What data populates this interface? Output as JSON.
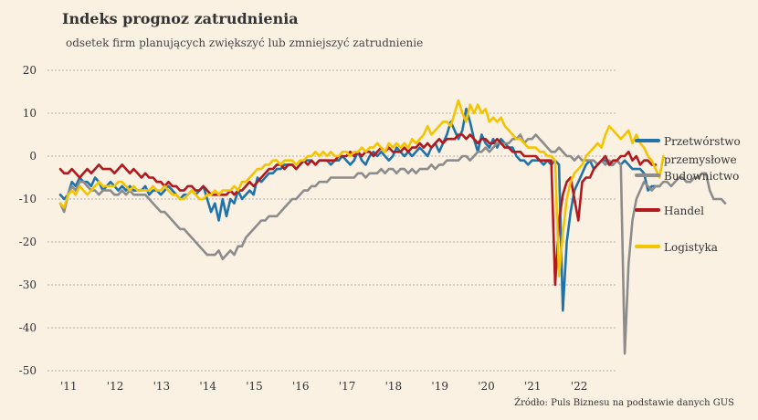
{
  "title": "Indeks prognoz zatrudnienia",
  "subtitle": "odsetek firm planujących zwiększyć lub zmniejszyć zatrudnienie",
  "source": "Źródło: Puls Biznesu na podstawie danych GUS",
  "legend": [
    {
      "label": "Przetwórstwo przemysłowe",
      "color": "#1f73a8"
    },
    {
      "label": "Budownictwo",
      "color": "#8c8c8c"
    },
    {
      "label": "Handel",
      "color": "#b0191e"
    },
    {
      "label": "Logistyka",
      "color": "#f5c400"
    }
  ],
  "chart_data": {
    "type": "line",
    "ylim": [
      -50,
      20
    ],
    "yticks": [
      "20",
      "10",
      "0",
      "-10",
      "-20",
      "-30",
      "-40",
      "-50"
    ],
    "xticks": [
      "'11",
      "'12",
      "'13",
      "'14",
      "'15",
      "'16",
      "'17",
      "'18",
      "'19",
      "'20",
      "'21",
      "'22"
    ],
    "x_start": "2011-01",
    "grid": true,
    "legend_position": "right",
    "series": [
      {
        "name": "Przetwórstwo przemysłowe",
        "color": "#1f73a8",
        "values": [
          -9,
          -10,
          -9,
          -6,
          -7,
          -5,
          -6,
          -6,
          -7,
          -5,
          -6,
          -8,
          -7,
          -6,
          -7,
          -8,
          -7,
          -8,
          -7,
          -8,
          -8,
          -8,
          -7,
          -9,
          -8,
          -8,
          -9,
          -8,
          -7,
          -8,
          -9,
          -10,
          -9,
          -9,
          -8,
          -9,
          -8,
          -7,
          -10,
          -13,
          -11,
          -15,
          -10,
          -14,
          -10,
          -11,
          -8,
          -10,
          -9,
          -8,
          -9,
          -5,
          -6,
          -5,
          -4,
          -4,
          -3,
          -3,
          -2,
          -2,
          -2,
          -3,
          -2,
          -1,
          -1,
          -1,
          -2,
          -1,
          -1,
          -1,
          -2,
          -1,
          -1,
          0,
          -1,
          -2,
          -1,
          1,
          -1,
          -2,
          0,
          1,
          0,
          1,
          0,
          -1,
          0,
          2,
          1,
          0,
          1,
          0,
          1,
          2,
          1,
          0,
          2,
          3,
          1,
          3,
          5,
          8,
          6,
          4,
          6,
          11,
          8,
          4,
          1,
          5,
          3,
          2,
          4,
          2,
          4,
          3,
          2,
          2,
          0,
          -1,
          -1,
          -2,
          -1,
          -1,
          -1,
          -2,
          -1,
          -2,
          -1,
          -2,
          -36,
          -20,
          -13,
          -8,
          -6,
          -4,
          -2,
          -1,
          -3,
          -2,
          -1,
          -1,
          -2,
          -2,
          -1,
          -2,
          -1,
          -2,
          -3,
          -3,
          -3,
          -4,
          -8,
          -7,
          -7,
          -7
        ]
      },
      {
        "name": "Budownictwo",
        "color": "#8c8c8c",
        "values": [
          -11,
          -13,
          -9,
          -7,
          -8,
          -6,
          -6,
          -7,
          -8,
          -8,
          -9,
          -8,
          -8,
          -8,
          -9,
          -9,
          -8,
          -9,
          -8,
          -9,
          -9,
          -9,
          -9,
          -10,
          -11,
          -12,
          -13,
          -13,
          -14,
          -15,
          -16,
          -17,
          -17,
          -18,
          -19,
          -20,
          -21,
          -22,
          -23,
          -23,
          -23,
          -22,
          -24,
          -23,
          -22,
          -23,
          -21,
          -21,
          -19,
          -18,
          -17,
          -16,
          -15,
          -15,
          -14,
          -14,
          -14,
          -13,
          -12,
          -11,
          -10,
          -10,
          -9,
          -8,
          -8,
          -7,
          -7,
          -6,
          -6,
          -6,
          -5,
          -5,
          -5,
          -5,
          -5,
          -5,
          -5,
          -4,
          -4,
          -5,
          -4,
          -4,
          -4,
          -3,
          -4,
          -3,
          -3,
          -4,
          -3,
          -3,
          -4,
          -3,
          -4,
          -3,
          -3,
          -3,
          -2,
          -3,
          -2,
          -2,
          -1,
          -1,
          -1,
          -1,
          0,
          0,
          -1,
          0,
          1,
          1,
          2,
          1,
          2,
          3,
          3,
          3,
          3,
          4,
          4,
          5,
          3,
          4,
          4,
          5,
          4,
          3,
          2,
          1,
          1,
          2,
          1,
          0,
          0,
          -1,
          0,
          -1,
          -1,
          -1,
          -1,
          -2,
          -1,
          -2,
          -1,
          -2,
          -1,
          -2,
          -46,
          -25,
          -15,
          -10,
          -8,
          -6,
          -7,
          -8,
          -7,
          -7,
          -6,
          -6,
          -7,
          -6,
          -5,
          -5,
          -6,
          -6,
          -5,
          -5,
          -4,
          -4,
          -8,
          -10,
          -10,
          -10,
          -11
        ]
      },
      {
        "name": "Handel",
        "color": "#b0191e",
        "values": [
          -3,
          -4,
          -4,
          -3,
          -4,
          -5,
          -4,
          -3,
          -4,
          -3,
          -2,
          -3,
          -3,
          -3,
          -4,
          -3,
          -2,
          -3,
          -4,
          -3,
          -4,
          -5,
          -4,
          -5,
          -5,
          -6,
          -6,
          -7,
          -6,
          -7,
          -7,
          -8,
          -8,
          -7,
          -7,
          -8,
          -8,
          -7,
          -8,
          -9,
          -9,
          -9,
          -9,
          -9,
          -8,
          -9,
          -8,
          -8,
          -7,
          -6,
          -7,
          -6,
          -5,
          -4,
          -3,
          -3,
          -2,
          -2,
          -3,
          -2,
          -2,
          -3,
          -2,
          -1,
          -2,
          -1,
          -2,
          -1,
          -1,
          -1,
          -1,
          -1,
          0,
          0,
          0,
          1,
          0,
          1,
          0,
          1,
          1,
          0,
          1,
          2,
          1,
          2,
          1,
          1,
          1,
          2,
          1,
          2,
          2,
          3,
          2,
          3,
          2,
          3,
          4,
          3,
          4,
          4,
          4,
          5,
          5,
          4,
          5,
          4,
          3,
          4,
          4,
          3,
          3,
          4,
          3,
          2,
          2,
          1,
          1,
          1,
          0,
          0,
          0,
          0,
          -1,
          -1,
          -1,
          -1,
          -30,
          -15,
          -9,
          -6,
          -5,
          -10,
          -15,
          -6,
          -5,
          -5,
          -3,
          -2,
          -1,
          0,
          -2,
          -1,
          -1,
          0,
          0,
          1,
          -1,
          0,
          -2,
          -1,
          -1,
          -2,
          -2
        ]
      },
      {
        "name": "Logistyka",
        "color": "#f5c400",
        "values": [
          -11,
          -12,
          -9,
          -8,
          -9,
          -7,
          -8,
          -9,
          -8,
          -7,
          -6,
          -7,
          -7,
          -7,
          -7,
          -6,
          -6,
          -7,
          -8,
          -7,
          -8,
          -8,
          -8,
          -8,
          -7,
          -8,
          -8,
          -7,
          -8,
          -9,
          -9,
          -10,
          -10,
          -9,
          -8,
          -9,
          -10,
          -10,
          -9,
          -9,
          -8,
          -9,
          -8,
          -8,
          -8,
          -7,
          -8,
          -6,
          -6,
          -5,
          -4,
          -3,
          -3,
          -2,
          -2,
          -1,
          -1,
          -2,
          -1,
          -1,
          -1,
          -2,
          -1,
          -1,
          0,
          0,
          1,
          0,
          1,
          0,
          1,
          0,
          0,
          1,
          1,
          0,
          1,
          1,
          2,
          1,
          2,
          2,
          3,
          2,
          1,
          3,
          2,
          3,
          2,
          3,
          2,
          4,
          3,
          4,
          5,
          7,
          5,
          6,
          7,
          8,
          8,
          7,
          10,
          13,
          10,
          8,
          12,
          10,
          12,
          10,
          11,
          8,
          9,
          8,
          9,
          7,
          6,
          5,
          4,
          4,
          3,
          2,
          2,
          2,
          1,
          1,
          0,
          0,
          -1,
          -28,
          -18,
          -10,
          -6,
          -4,
          -3,
          -2,
          0,
          1,
          2,
          3,
          2,
          5,
          7,
          6,
          5,
          4,
          5,
          6,
          3,
          5,
          3,
          2,
          0,
          -1,
          -3,
          -5,
          0
        ]
      }
    ]
  }
}
